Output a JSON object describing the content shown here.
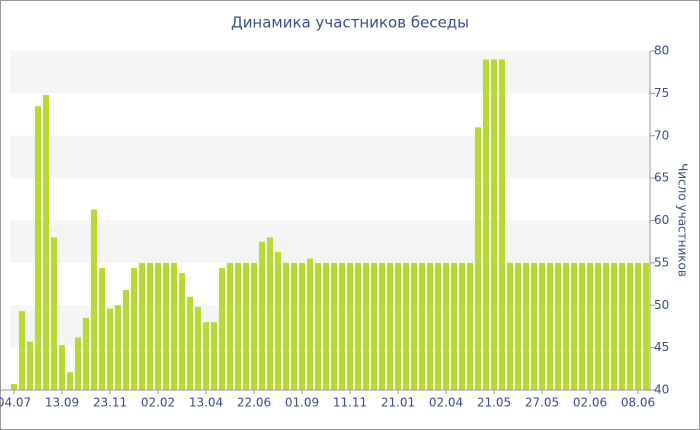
{
  "chart_data": {
    "type": "bar",
    "title": "Динамика участников беседы",
    "y_label": "Число участников",
    "categories": [
      "04.07",
      null,
      null,
      null,
      null,
      null,
      "13.09",
      null,
      null,
      null,
      null,
      null,
      "23.11",
      null,
      null,
      null,
      null,
      null,
      "02.02",
      null,
      null,
      null,
      null,
      null,
      "13.04",
      null,
      null,
      null,
      null,
      null,
      "22.06",
      null,
      null,
      null,
      null,
      null,
      "01.09",
      null,
      null,
      null,
      null,
      null,
      "11.11",
      null,
      null,
      null,
      null,
      null,
      "21.01",
      null,
      null,
      null,
      null,
      null,
      "02.04",
      null,
      null,
      null,
      null,
      null,
      "21.05",
      null,
      null,
      null,
      null,
      null,
      "27.05",
      null,
      null,
      null,
      null,
      null,
      "02.06",
      null,
      null,
      null,
      null,
      null,
      "08.06",
      null
    ],
    "values": [
      40.7,
      49.3,
      45.7,
      73.5,
      74.8,
      58,
      45.3,
      42.1,
      46.2,
      48.5,
      61.3,
      54.4,
      49.6,
      50,
      51.8,
      54.4,
      55,
      55,
      55,
      55,
      55,
      53.8,
      51,
      49.8,
      48,
      48,
      54.4,
      55,
      55,
      55,
      55,
      57.5,
      58,
      56.3,
      55,
      55,
      55,
      55.5,
      55,
      55,
      55,
      55,
      55,
      55,
      55,
      55,
      55,
      55,
      55,
      55,
      55,
      55,
      55,
      55,
      55,
      55,
      55,
      55,
      71,
      79,
      79,
      79,
      55,
      55,
      55,
      55,
      55,
      55,
      55,
      55,
      55,
      55,
      55,
      55,
      55,
      55,
      55,
      55,
      55,
      55
    ],
    "color": "#b8db34",
    "ylim": [
      40,
      80
    ],
    "yticks": [
      40,
      45,
      50,
      55,
      60,
      65,
      70,
      75,
      80
    ],
    "grid": "bands"
  }
}
